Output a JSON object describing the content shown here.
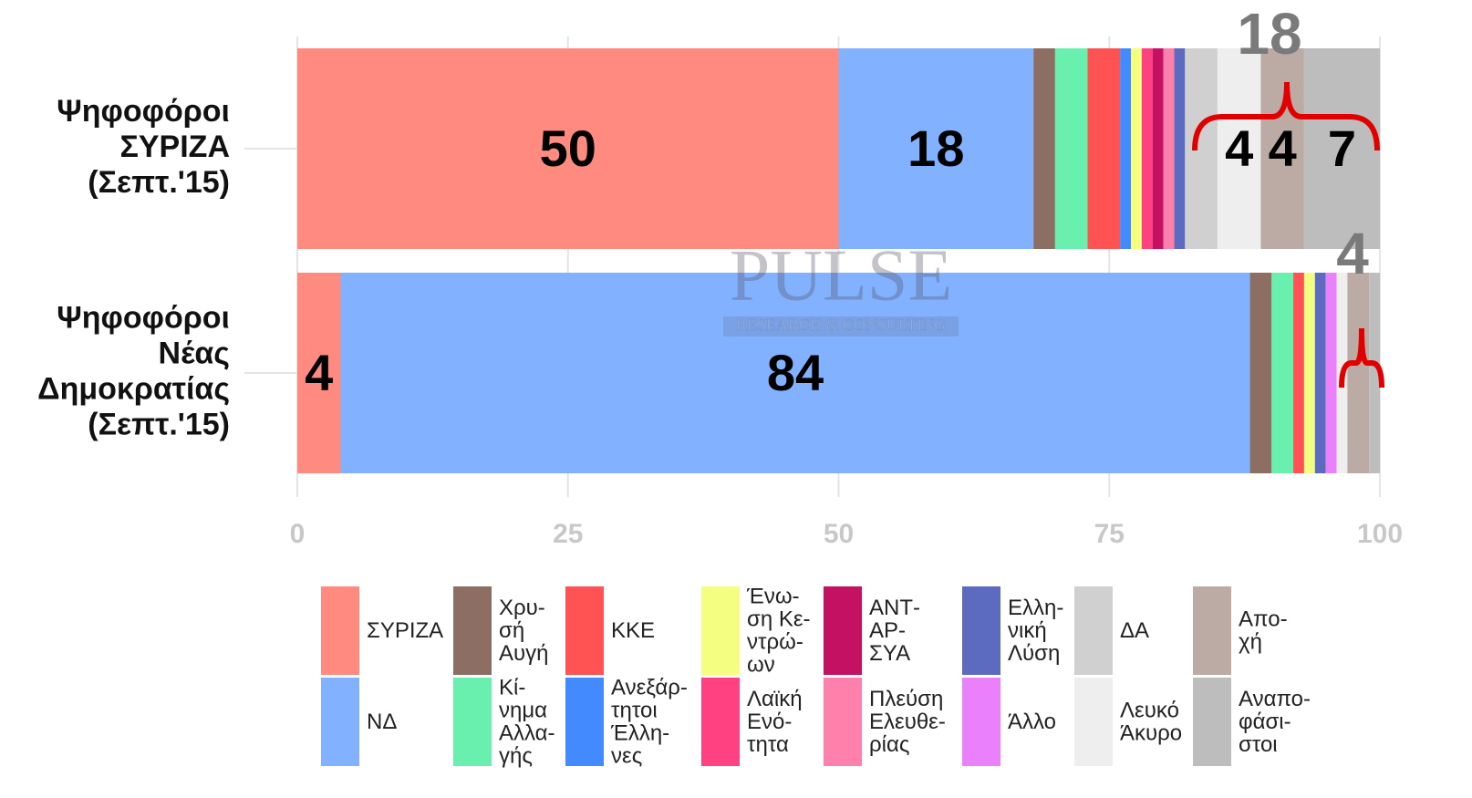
{
  "chart_data": {
    "type": "stacked_barh",
    "categories": [
      "Ψηφοφόροι\nΣΥΡΙΖΑ\n(Σεπτ.'15)",
      "Ψηφοφόροι\nΝέας\nΔημοκρατίας\n(Σεπτ.'15)"
    ],
    "series": [
      {
        "name": "ΣΥΡΙΖΑ",
        "color": "#ff8a80",
        "values": [
          50,
          4
        ],
        "value_labels": [
          "50",
          "4"
        ]
      },
      {
        "name": "ΝΔ",
        "color": "#82b1ff",
        "values": [
          18,
          84
        ],
        "value_labels": [
          "18",
          "84"
        ]
      },
      {
        "name": "Χρυ-\nσή\nΑυγή",
        "color": "#8d6e63",
        "values": [
          2,
          2
        ]
      },
      {
        "name": "Κί-\nνημα\nΑλλα-\nγής",
        "color": "#69f0ae",
        "values": [
          3,
          2
        ]
      },
      {
        "name": "ΚΚΕ",
        "color": "#ff5252",
        "values": [
          3,
          1
        ]
      },
      {
        "name": "Ανεξάρ-\nτητοι\nΈλλη-\nνες",
        "color": "#448aff",
        "values": [
          1,
          0
        ]
      },
      {
        "name": "Ένω-\nση Κε-\nντρώ-\nων",
        "color": "#f4ff81",
        "values": [
          1,
          1
        ]
      },
      {
        "name": "Λαϊκή\nΕνό-\nτητα",
        "color": "#ff4081",
        "values": [
          1,
          0
        ]
      },
      {
        "name": "ΑΝΤ-\nΑΡ-\nΣΥΑ",
        "color": "#c51162",
        "values": [
          1,
          0
        ]
      },
      {
        "name": "Πλεύση\nΕλευθε-\nρίας",
        "color": "#ff80ab",
        "values": [
          1,
          0
        ]
      },
      {
        "name": "Ελλη-\nνική\nΛύση",
        "color": "#5c6bc0",
        "values": [
          1,
          1
        ]
      },
      {
        "name": "Άλλο",
        "color": "#ea80fc",
        "values": [
          0,
          1
        ]
      },
      {
        "name": "ΔΑ",
        "color": "#d0d0d0",
        "values": [
          3,
          0
        ]
      },
      {
        "name": "Λευκό\nΆκυρο",
        "color": "#eeeeee",
        "values": [
          4,
          1
        ],
        "value_labels": [
          "4",
          null
        ]
      },
      {
        "name": "Απο-\nχή",
        "color": "#bcaaa4",
        "values": [
          4,
          2
        ],
        "value_labels": [
          "4",
          null
        ]
      },
      {
        "name": "Αναπο-\nφάσι-\nστοι",
        "color": "#bdbdbd",
        "values": [
          7,
          1
        ],
        "value_labels": [
          "7",
          null
        ]
      }
    ],
    "xlim": [
      0,
      100
    ],
    "xticks": [
      0,
      25,
      50,
      75,
      100
    ],
    "grid": true,
    "annotations": [
      {
        "text": "18"
      },
      {
        "text": "4"
      }
    ],
    "watermark": [
      "PULSE",
      "RESEARCH & CONSULTING"
    ]
  }
}
